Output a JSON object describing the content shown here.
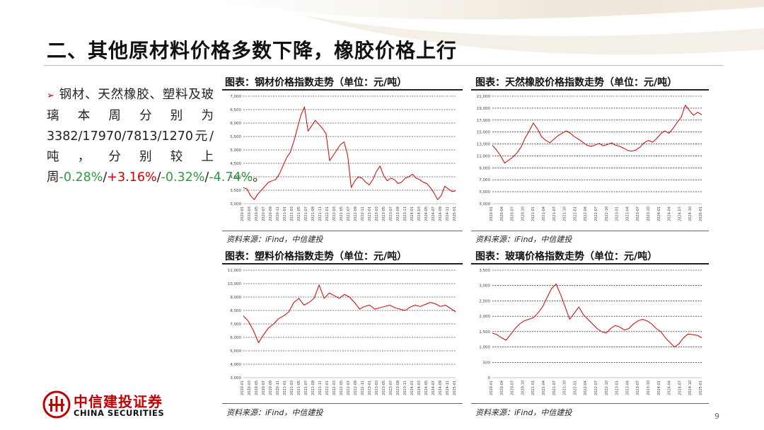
{
  "slide": {
    "title": "二、其他原材料价格多数下降，橡胶价格上行",
    "page_number": "9",
    "bullet": {
      "lead": "钢材、天然橡胶、塑料及玻璃本周分别为3382/17970/7813/1270元/吨，分别较上周",
      "v1": "-0.28%",
      "sep1": "/",
      "v2": "+3.16%",
      "sep2": "/",
      "v3": "-0.32%",
      "sep3": "/",
      "v4": "-4.74%",
      "tail": "。"
    },
    "logo": {
      "name_cn": "中信建投证券",
      "name_en": "CHINA SECURITIES"
    },
    "colors": {
      "line": "#d40000",
      "accent": "#c00000",
      "grid": "#000000",
      "negative": "#2e9d3c",
      "positive": "#d40000"
    }
  },
  "charts": [
    {
      "title": "图表：钢材价格指数走势（单位：元/吨）",
      "source": "资料来源：iFind，中信建投"
    },
    {
      "title": "图表：天然橡胶价格指数走势（单位：元/吨）",
      "source": "资料来源：iFind，中信建投"
    },
    {
      "title": "图表：塑料价格指数走势（单位：元/吨）",
      "source": "资料来源：iFind，中信建投"
    },
    {
      "title": "图表：玻璃价格指数走势（单位：元/吨）",
      "source": "资料来源：iFind，中信建投"
    }
  ],
  "chart_data": [
    {
      "type": "line",
      "title": "图表：钢材价格指数走势（单位：元/吨）",
      "ylim": [
        3000,
        7000
      ],
      "y_ticks": [
        "3,000",
        "3,500",
        "4,000",
        "4,500",
        "5,000",
        "5,500",
        "6,000",
        "6,500",
        "7,000"
      ],
      "x_ticks": [
        "2020-01",
        "2020-03",
        "2020-05",
        "2020-07",
        "2020-09",
        "2020-11",
        "2021-01",
        "2021-03",
        "2021-05",
        "2021-07",
        "2021-09",
        "2021-11",
        "2022-01",
        "2022-03",
        "2022-05",
        "2022-07",
        "2022-09",
        "2022-11",
        "2023-01",
        "2023-03",
        "2023-05",
        "2023-07",
        "2023-09",
        "2023-11",
        "2024-01",
        "2024-03",
        "2024-05",
        "2024-07",
        "2024-09",
        "2024-11",
        "2025-01"
      ],
      "grid": true,
      "series": [
        {
          "values": [
            3600,
            3550,
            3300,
            3150,
            3350,
            3500,
            3650,
            3800,
            3850,
            3900,
            4100,
            4400,
            4700,
            4900,
            5300,
            5800,
            6300,
            6600,
            5700,
            5900,
            6100,
            5950,
            5800,
            5600,
            4600,
            4800,
            5000,
            5200,
            5300,
            4800,
            3600,
            3850,
            4000,
            3950,
            3800,
            3700,
            3900,
            4200,
            4400,
            4050,
            3850,
            3950,
            3900,
            3750,
            3800,
            3950,
            4000,
            4100,
            3950,
            3900,
            3800,
            3750,
            3600,
            3400,
            3150,
            3300,
            3650,
            3550,
            3450,
            3480
          ]
        }
      ]
    },
    {
      "type": "line",
      "title": "图表：天然橡胶价格指数走势（单位：元/吨）",
      "ylim": [
        3000,
        21000
      ],
      "y_ticks": [
        "3,000",
        "5,000",
        "7,000",
        "9,000",
        "11,000",
        "13,000",
        "15,000",
        "17,000",
        "19,000",
        "21,000"
      ],
      "x_ticks": [
        "2020-01",
        "2020-04",
        "2020-07",
        "2020-10",
        "2021-01",
        "2021-04",
        "2021-07",
        "2021-10",
        "2022-01",
        "2022-04",
        "2022-07",
        "2022-10",
        "2023-01",
        "2023-04",
        "2023-07",
        "2023-10",
        "2024-01",
        "2024-04",
        "2024-07",
        "2024-10",
        "2025-01"
      ],
      "grid": true,
      "series": [
        {
          "values": [
            12800,
            12000,
            11000,
            9800,
            10300,
            10800,
            11500,
            12500,
            14000,
            15200,
            16500,
            15500,
            14200,
            13600,
            13200,
            13800,
            14400,
            14800,
            15200,
            14800,
            14200,
            13800,
            13300,
            12800,
            12600,
            12800,
            13100,
            12700,
            12900,
            13200,
            12800,
            12600,
            12300,
            11900,
            11800,
            12000,
            12500,
            13200,
            13600,
            13300,
            13900,
            14700,
            15200,
            14800,
            15600,
            16600,
            17500,
            19500,
            18600,
            17800,
            18300,
            17900
          ]
        }
      ]
    },
    {
      "type": "line",
      "title": "图表：塑料价格指数走势（单位：元/吨）",
      "ylim": [
        3000,
        11000
      ],
      "y_ticks": [
        "3,000",
        "4,000",
        "5,000",
        "6,000",
        "7,000",
        "8,000",
        "9,000",
        "10,000",
        "11,000"
      ],
      "x_ticks": [
        "2020-01",
        "2020-03",
        "2020-05",
        "2020-07",
        "2020-09",
        "2020-11",
        "2021-01",
        "2021-03",
        "2021-05",
        "2021-07",
        "2021-09",
        "2021-11",
        "2022-01",
        "2022-03",
        "2022-05",
        "2022-07",
        "2022-09",
        "2022-11",
        "2023-01",
        "2023-03",
        "2023-05",
        "2023-07",
        "2023-09",
        "2023-11",
        "2024-01",
        "2024-03",
        "2024-05",
        "2024-07",
        "2024-09",
        "2024-11",
        "2025-01"
      ],
      "grid": true,
      "series": [
        {
          "values": [
            7600,
            7200,
            6500,
            5600,
            6200,
            6700,
            7000,
            7400,
            7600,
            7900,
            8600,
            8900,
            8400,
            8600,
            8900,
            9900,
            8900,
            9300,
            9100,
            8900,
            9200,
            9000,
            8600,
            8100,
            8300,
            8400,
            8100,
            8200,
            8300,
            8400,
            8200,
            8100,
            8000,
            8250,
            8400,
            8300,
            8450,
            8600,
            8500,
            8300,
            8400,
            8150,
            7900
          ]
        }
      ]
    },
    {
      "type": "line",
      "title": "图表：玻璃价格指数走势（单位：元/吨）",
      "ylim": [
        0,
        3500
      ],
      "y_ticks": [
        "0",
        "500",
        "1,000",
        "1,500",
        "2,000",
        "2,500",
        "3,000",
        "3,500"
      ],
      "x_ticks": [
        "2020-01",
        "2020-04",
        "2020-07",
        "2020-10",
        "2021-01",
        "2021-04",
        "2021-07",
        "2021-10",
        "2022-01",
        "2022-04",
        "2022-07",
        "2022-10",
        "2023-01",
        "2023-04",
        "2023-07",
        "2023-10",
        "2024-01",
        "2024-04",
        "2024-07",
        "2024-10",
        "2025-01"
      ],
      "grid": true,
      "series": [
        {
          "values": [
            1450,
            1400,
            1300,
            1220,
            1400,
            1600,
            1750,
            1850,
            1900,
            1950,
            2100,
            2300,
            2600,
            2900,
            3050,
            2700,
            2300,
            1900,
            2100,
            2300,
            2050,
            1900,
            1750,
            1600,
            1500,
            1450,
            1600,
            1700,
            1650,
            1550,
            1600,
            1750,
            1850,
            1900,
            1850,
            1750,
            1600,
            1500,
            1300,
            1150,
            1000,
            1100,
            1300,
            1420,
            1400,
            1380,
            1300
          ]
        }
      ]
    }
  ]
}
